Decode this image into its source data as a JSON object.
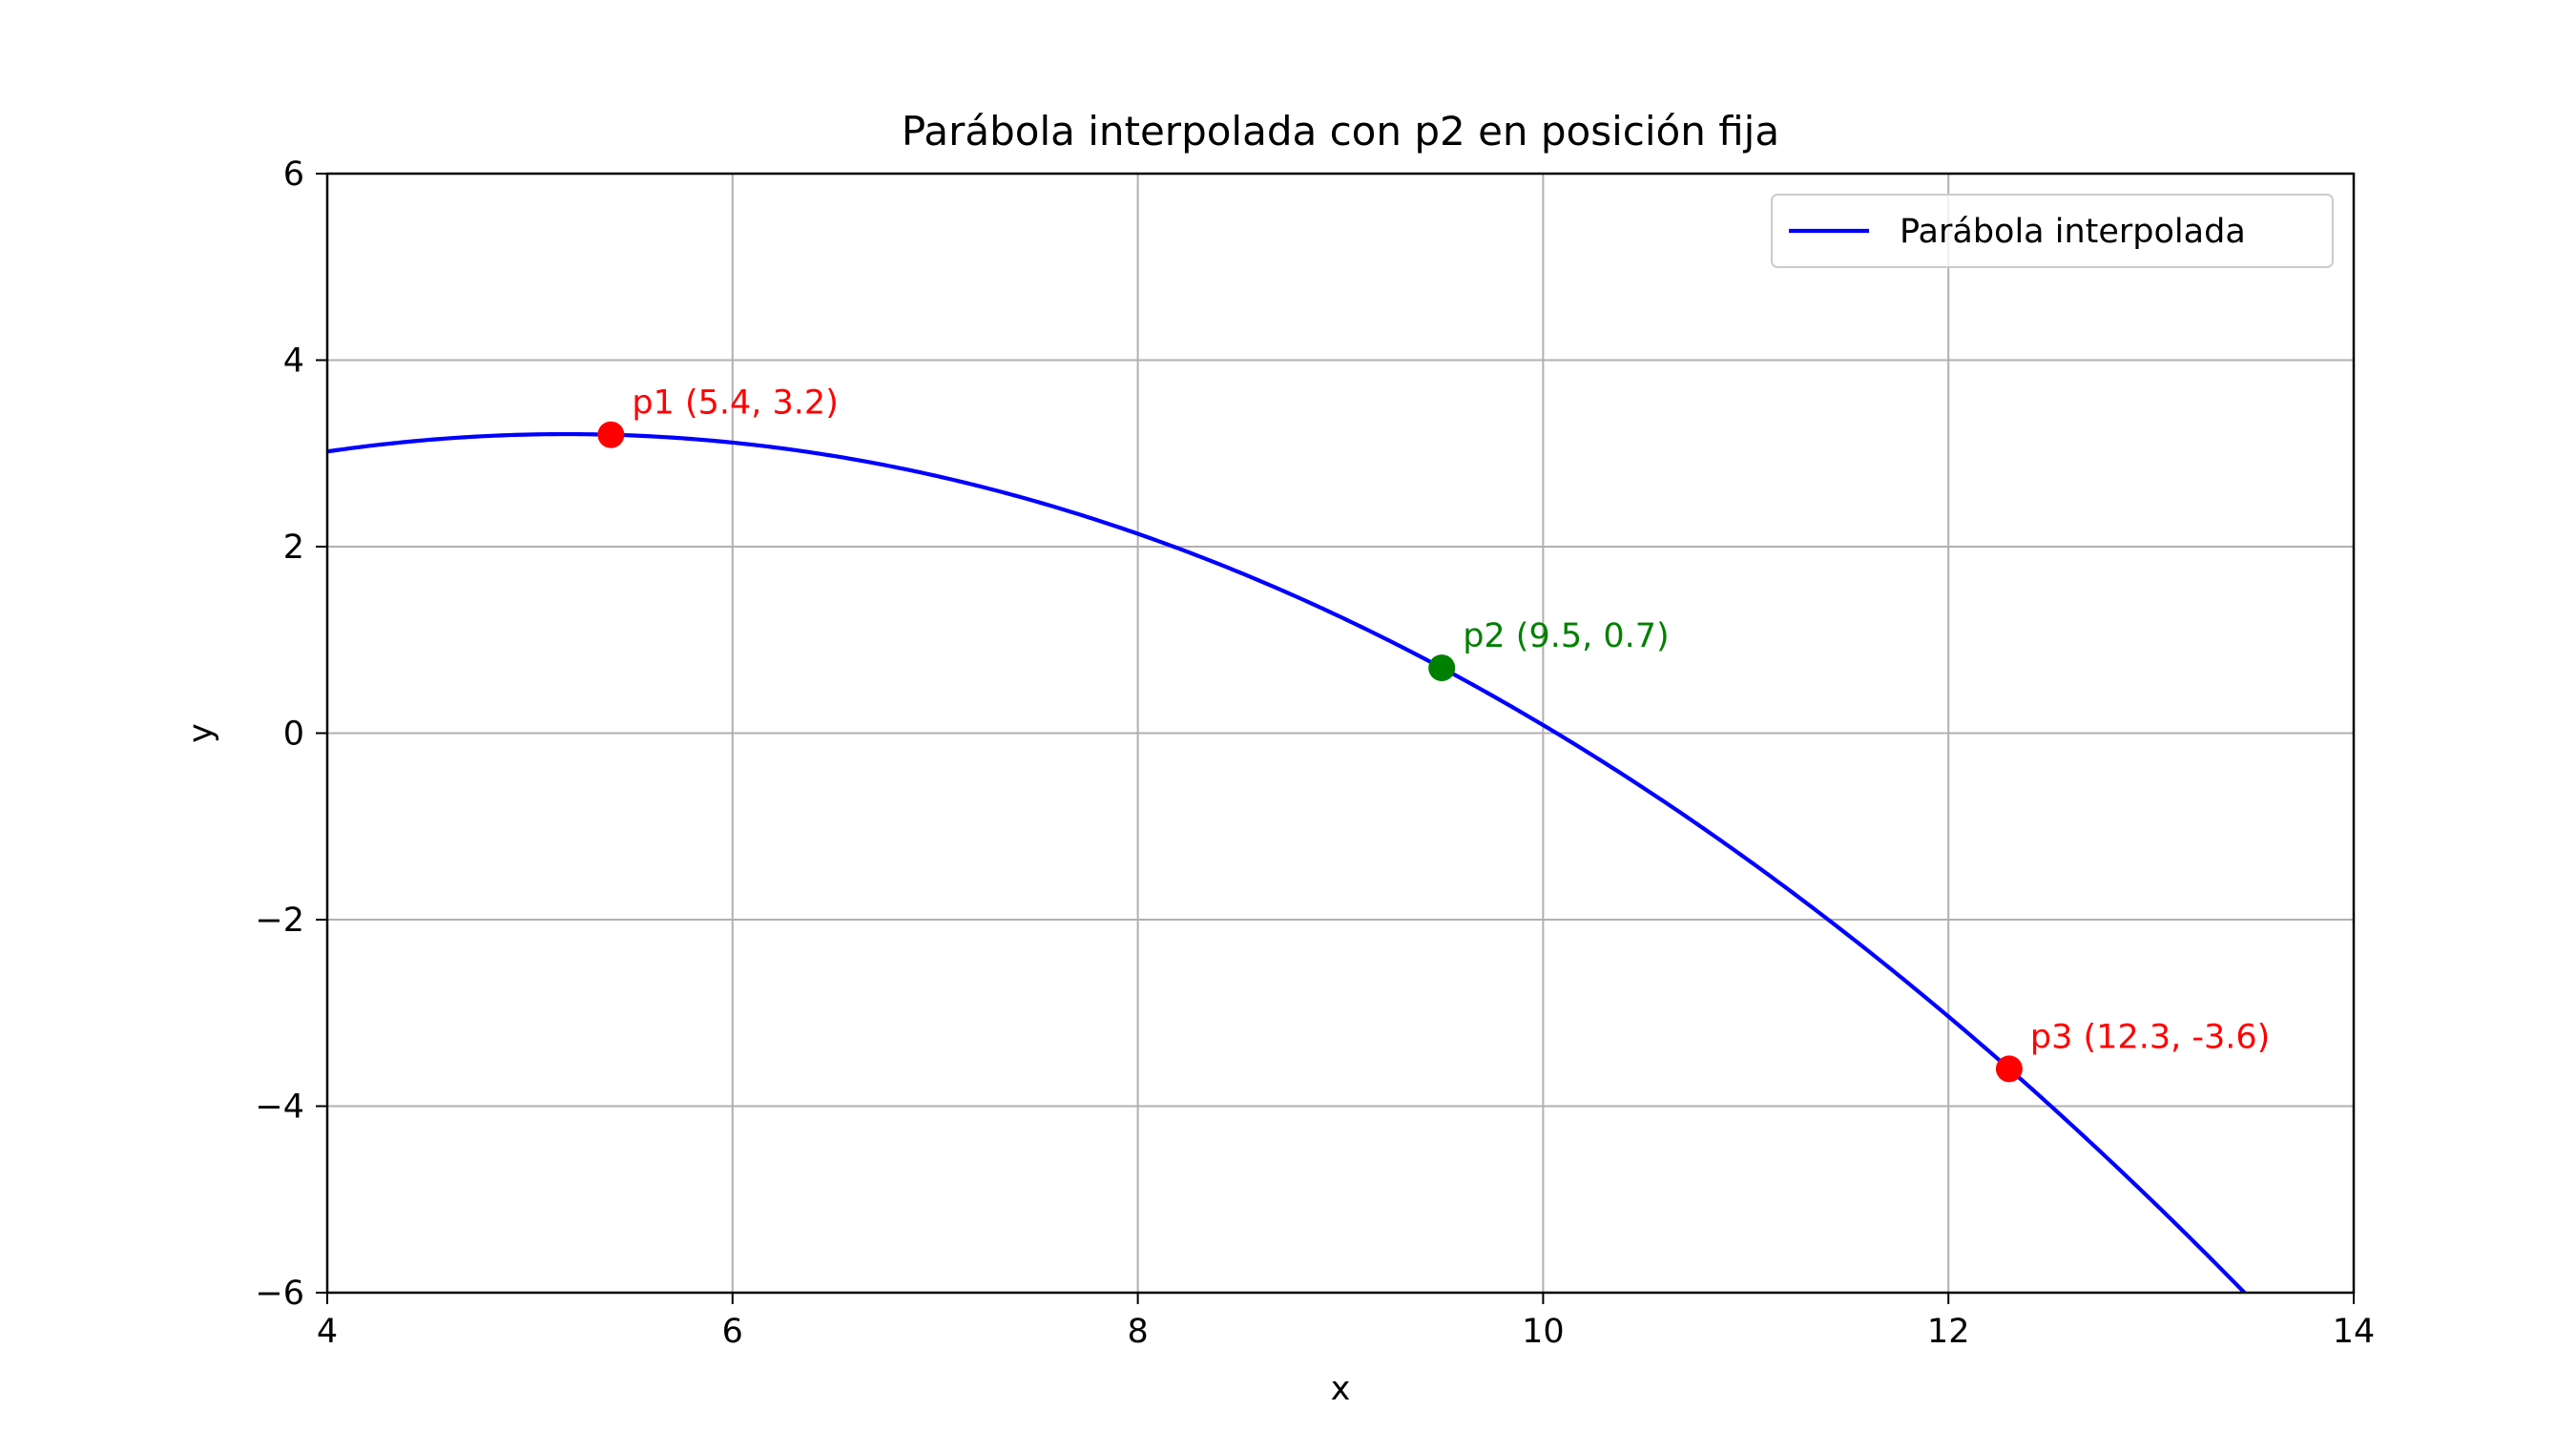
{
  "chart_data": {
    "type": "line",
    "title": "Parábola interpolada con p2 en posición fija",
    "xlabel": "x",
    "ylabel": "y",
    "xlim": [
      4,
      14
    ],
    "ylim": [
      -6,
      6
    ],
    "xticks": [
      4,
      6,
      8,
      10,
      12,
      14
    ],
    "xtick_labels": [
      "4",
      "6",
      "8",
      "10",
      "12",
      "14"
    ],
    "yticks": [
      -6,
      -4,
      -2,
      0,
      2,
      4,
      6
    ],
    "ytick_labels": [
      "−6",
      "−4",
      "−2",
      "0",
      "2",
      "4",
      "6"
    ],
    "grid": true,
    "legend": {
      "placement": "top-right",
      "entries": [
        {
          "label": "Parábola interpolada",
          "color": "#0000ff"
        }
      ]
    },
    "series": [
      {
        "name": "Parábola interpolada",
        "color": "#0000ff",
        "kind": "quadratic-through-points",
        "through": [
          [
            5.4,
            3.2
          ],
          [
            9.5,
            0.7
          ],
          [
            12.3,
            -3.6
          ]
        ]
      }
    ],
    "points": [
      {
        "id": "p1",
        "x": 5.4,
        "y": 3.2,
        "color": "#ff0000",
        "label": "p1 (5.4, 3.2)"
      },
      {
        "id": "p2",
        "x": 9.5,
        "y": 0.7,
        "color": "#008000",
        "label": "p2 (9.5, 0.7)"
      },
      {
        "id": "p3",
        "x": 12.3,
        "y": -3.6,
        "color": "#ff0000",
        "label": "p3 (12.3, -3.6)"
      }
    ]
  }
}
